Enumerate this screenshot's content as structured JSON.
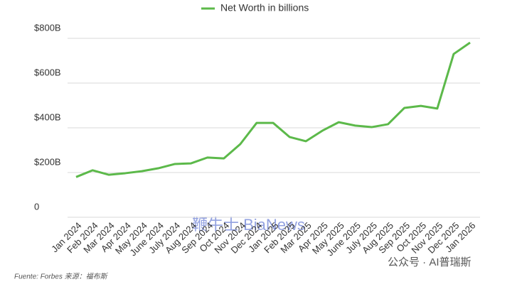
{
  "chart_data": {
    "type": "line",
    "categories": [
      "Jan 2024",
      "Feb 2024",
      "Mar 2024",
      "Apr 2024",
      "May 2024",
      "June 2024",
      "July 2024",
      "Aug 2024",
      "Sep 2024",
      "Oct 2024",
      "Nov 2024",
      "Dec 2024",
      "Jan 2025",
      "Feb 2025",
      "Mar 2025",
      "Apr 2025",
      "May 2025",
      "June 2025",
      "July 2025",
      "Aug 2025",
      "Sep 2025",
      "Oct 2025",
      "Nov 2025",
      "Dec 2025",
      "Jan 2026"
    ],
    "series": [
      {
        "name": "Net Worth in billions",
        "color": "#5cb94a",
        "values": [
          180,
          210,
          190,
          197,
          206,
          219,
          238,
          241,
          267,
          263,
          327,
          422,
          422,
          359,
          340,
          387,
          425,
          410,
          403,
          416,
          489,
          498,
          486,
          730,
          781
        ]
      }
    ],
    "ylim": [
      0,
      800
    ],
    "yticks": [
      0,
      {
        "value": 200,
        "label": "$200B"
      },
      {
        "value": 400,
        "label": "$400B"
      },
      {
        "value": 600,
        "label": "$600B"
      },
      {
        "value": 800,
        "label": "$800B"
      }
    ],
    "grid": true,
    "legend": "top",
    "source": "Fuente: Forbes  来源：福布斯",
    "watermarks": [
      "鞭牛士 BiaNews",
      "公众号 · AI普瑞斯"
    ]
  }
}
